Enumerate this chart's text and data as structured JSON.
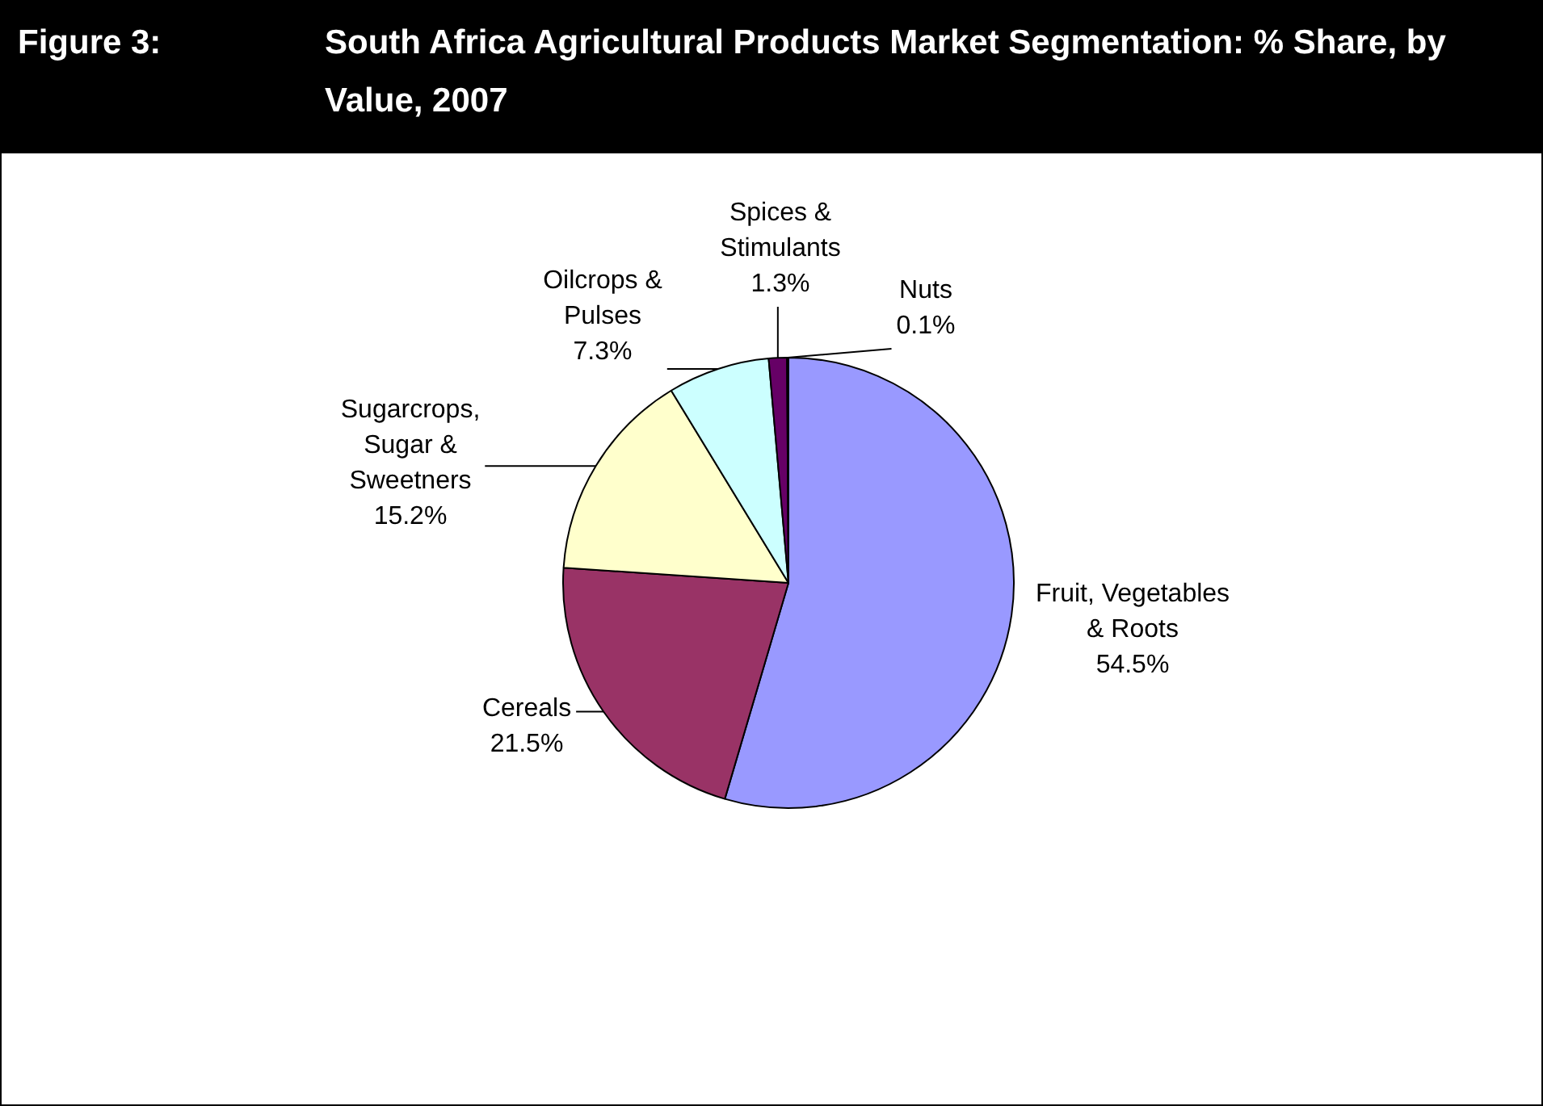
{
  "chart_data": {
    "type": "pie",
    "title": "Figure 3: South Africa Agricultural Products Market Segmentation: % Share, by Value, 2007",
    "categories": [
      "Fruit, Vegetables & Roots",
      "Cereals",
      "Sugarcrops, Sugar & Sweetners",
      "Oilcrops & Pulses",
      "Spices & Stimulants",
      "Nuts"
    ],
    "values": [
      54.5,
      21.5,
      15.2,
      7.3,
      1.3,
      0.1
    ],
    "value_labels": [
      "54.5%",
      "21.5%",
      "15.2%",
      "7.3%",
      "1.3%",
      "0.1%"
    ],
    "colors": [
      "#9999ff",
      "#993366",
      "#ffffcc",
      "#ccffff",
      "#660066",
      "#ff8080"
    ],
    "legend": false
  }
}
